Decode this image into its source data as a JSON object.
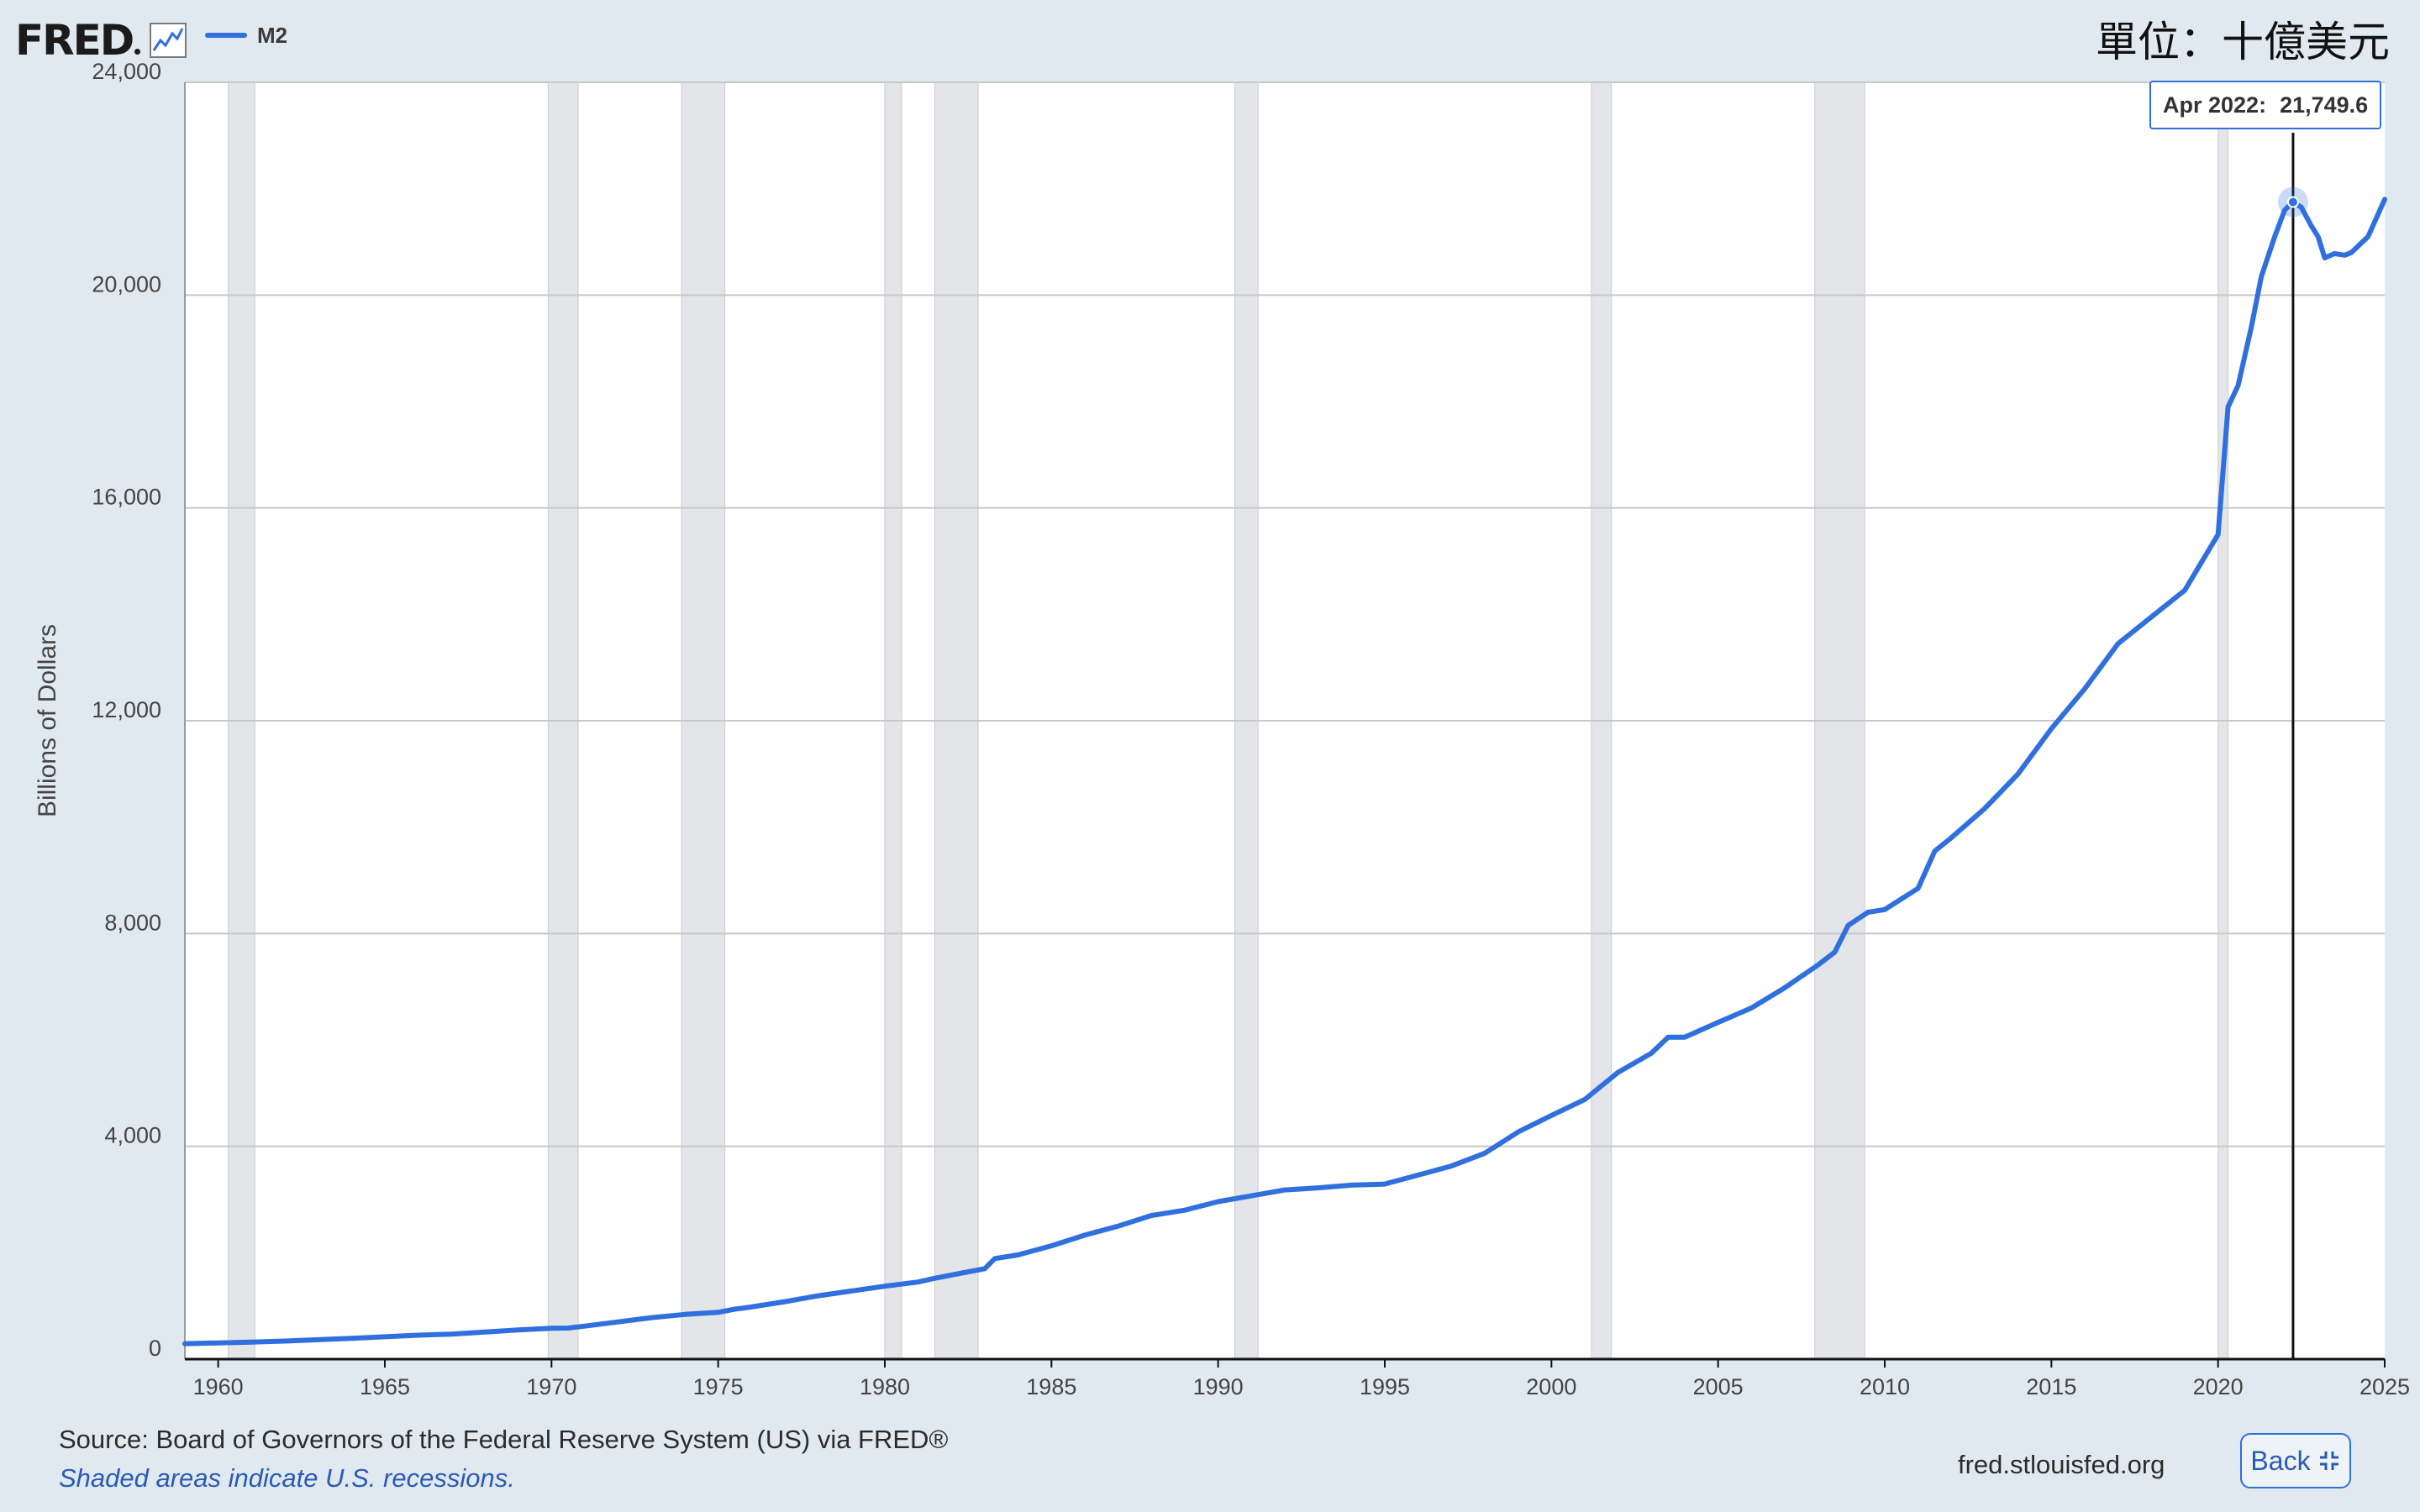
{
  "header": {
    "logo_text": "FRED",
    "graph_icon": "line-graph-icon",
    "units_label": "單位：十億美元"
  },
  "tooltip": {
    "date": "Apr 2022:",
    "value": "21,749.6"
  },
  "footer": {
    "source": "Source: Board of Governors of the Federal Reserve System (US) via FRED®",
    "recession_note": "Shaded areas indicate U.S. recessions.",
    "site": "fred.stlouisfed.org",
    "back_label": "Back",
    "back_icon": "collapse-icon"
  },
  "colors": {
    "series": "#2f6fde",
    "recession": "#e3e5e8",
    "plot_bg": "#ffffff",
    "page_bg": "#e1e9f0"
  },
  "chart_data": {
    "type": "line",
    "title": "",
    "xlabel": "",
    "ylabel": "Billions of Dollars",
    "xlim": [
      1959.0,
      2025.0
    ],
    "ylim": [
      0,
      24000
    ],
    "y_ticks": [
      0,
      4000,
      8000,
      12000,
      16000,
      20000,
      24000
    ],
    "y_tick_labels": [
      "0",
      "4,000",
      "8,000",
      "12,000",
      "16,000",
      "20,000",
      "24,000"
    ],
    "x_ticks": [
      1960,
      1965,
      1970,
      1975,
      1980,
      1985,
      1990,
      1995,
      2000,
      2005,
      2010,
      2015,
      2020,
      2025
    ],
    "x_tick_labels": [
      "1960",
      "1965",
      "1970",
      "1975",
      "1980",
      "1985",
      "1990",
      "1995",
      "2000",
      "2005",
      "2010",
      "2015",
      "2020",
      "2025"
    ],
    "grid": "horizontal",
    "legend_position": "top-left",
    "recessions": [
      [
        1960.3,
        1961.1
      ],
      [
        1969.9,
        1970.8
      ],
      [
        1973.9,
        1975.2
      ],
      [
        1980.0,
        1980.5
      ],
      [
        1981.5,
        1982.8
      ],
      [
        1990.5,
        1991.2
      ],
      [
        2001.2,
        2001.8
      ],
      [
        2007.9,
        2009.4
      ],
      [
        2020.0,
        2020.3
      ]
    ],
    "highlight": {
      "x": 2022.25,
      "y": 21749.6
    },
    "series": [
      {
        "name": "M2",
        "color": "#2f6fde",
        "points": [
          [
            1959.0,
            290
          ],
          [
            1960.0,
            305
          ],
          [
            1961.0,
            320
          ],
          [
            1962.0,
            340
          ],
          [
            1963.0,
            365
          ],
          [
            1964.0,
            390
          ],
          [
            1965.0,
            420
          ],
          [
            1966.0,
            450
          ],
          [
            1967.0,
            470
          ],
          [
            1968.0,
            510
          ],
          [
            1969.0,
            550
          ],
          [
            1970.0,
            580
          ],
          [
            1970.5,
            585
          ],
          [
            1971.0,
            620
          ],
          [
            1972.0,
            700
          ],
          [
            1973.0,
            780
          ],
          [
            1974.0,
            840
          ],
          [
            1975.0,
            880
          ],
          [
            1975.5,
            940
          ],
          [
            1976.0,
            980
          ],
          [
            1977.0,
            1080
          ],
          [
            1978.0,
            1190
          ],
          [
            1979.0,
            1280
          ],
          [
            1980.0,
            1370
          ],
          [
            1981.0,
            1450
          ],
          [
            1981.5,
            1520
          ],
          [
            1982.0,
            1580
          ],
          [
            1983.0,
            1700
          ],
          [
            1983.3,
            1890
          ],
          [
            1984.0,
            1960
          ],
          [
            1985.0,
            2130
          ],
          [
            1986.0,
            2330
          ],
          [
            1987.0,
            2500
          ],
          [
            1988.0,
            2700
          ],
          [
            1989.0,
            2800
          ],
          [
            1990.0,
            2960
          ],
          [
            1991.0,
            3070
          ],
          [
            1992.0,
            3180
          ],
          [
            1993.0,
            3220
          ],
          [
            1994.0,
            3270
          ],
          [
            1995.0,
            3290
          ],
          [
            1996.0,
            3460
          ],
          [
            1997.0,
            3630
          ],
          [
            1998.0,
            3870
          ],
          [
            1999.0,
            4270
          ],
          [
            2000.0,
            4580
          ],
          [
            2001.0,
            4880
          ],
          [
            2002.0,
            5390
          ],
          [
            2003.0,
            5750
          ],
          [
            2003.5,
            6050
          ],
          [
            2004.0,
            6050
          ],
          [
            2005.0,
            6330
          ],
          [
            2006.0,
            6600
          ],
          [
            2007.0,
            6980
          ],
          [
            2008.0,
            7410
          ],
          [
            2008.5,
            7650
          ],
          [
            2008.9,
            8150
          ],
          [
            2009.5,
            8400
          ],
          [
            2010.0,
            8450
          ],
          [
            2011.0,
            8850
          ],
          [
            2011.5,
            9550
          ],
          [
            2012.0,
            9800
          ],
          [
            2013.0,
            10350
          ],
          [
            2014.0,
            11000
          ],
          [
            2015.0,
            11850
          ],
          [
            2016.0,
            12600
          ],
          [
            2017.0,
            13450
          ],
          [
            2018.0,
            13950
          ],
          [
            2019.0,
            14450
          ],
          [
            2020.0,
            15500
          ],
          [
            2020.3,
            17900
          ],
          [
            2020.6,
            18300
          ],
          [
            2021.0,
            19400
          ],
          [
            2021.3,
            20350
          ],
          [
            2021.7,
            21100
          ],
          [
            2022.0,
            21600
          ],
          [
            2022.25,
            21749.6
          ],
          [
            2022.5,
            21650
          ],
          [
            2022.8,
            21300
          ],
          [
            2023.0,
            21100
          ],
          [
            2023.2,
            20700
          ],
          [
            2023.5,
            20780
          ],
          [
            2023.8,
            20750
          ],
          [
            2024.0,
            20800
          ],
          [
            2024.5,
            21100
          ],
          [
            2025.0,
            21800
          ]
        ]
      }
    ]
  }
}
